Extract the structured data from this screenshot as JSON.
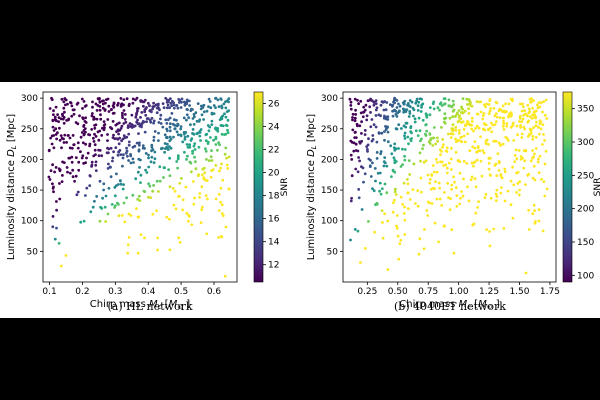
{
  "chart_data": [
    {
      "type": "scatter",
      "xlabel": "Chirp mass",
      "xlabel_symbol": "M",
      "xlabel_subscript": "c",
      "xlabel_unit_open": "[",
      "xlabel_unit_sym": "M",
      "xlabel_unit_sub": "⊙",
      "xlabel_unit_close": "]",
      "ylabel": "Luminosity distance",
      "ylabel_symbol": "D",
      "ylabel_subscript": "L",
      "ylabel_unit": "[Mpc]",
      "colorbar_label": "SNR",
      "caption": "(a) HL network",
      "xlim": [
        0.08,
        0.67
      ],
      "ylim": [
        0,
        310
      ],
      "xticks": [
        0.1,
        0.2,
        0.3,
        0.4,
        0.5,
        0.6
      ],
      "yticks": [
        50,
        100,
        150,
        200,
        250,
        300
      ],
      "clim": [
        10.5,
        27
      ],
      "cticks": [
        12,
        14,
        16,
        18,
        20,
        22,
        24,
        26
      ],
      "colormap": "viridis",
      "grid": false,
      "points_estimated": true,
      "n_points": 800,
      "seed": 11,
      "snr_ref": 300,
      "snr_scale": 0.28,
      "snr_power": 0.8333
    },
    {
      "type": "scatter",
      "xlabel": "Chirp mass",
      "xlabel_symbol": "M",
      "xlabel_subscript": "c",
      "xlabel_unit_open": "[",
      "xlabel_unit_sym": "M",
      "xlabel_unit_sub": "⊙",
      "xlabel_unit_close": "]",
      "ylabel": "Luminosity distance",
      "ylabel_symbol": "D",
      "ylabel_subscript": "L",
      "ylabel_unit": "[Mpc]",
      "colorbar_label": "SNR",
      "caption": "(b) 4040ET network",
      "xlim": [
        0.05,
        1.8
      ],
      "ylim": [
        0,
        310
      ],
      "xticks": [
        0.25,
        0.5,
        0.75,
        1.0,
        1.25,
        1.5,
        1.75
      ],
      "xtick_labels": [
        "0.25",
        "0.50",
        "0.75",
        "1.00",
        "1.25",
        "1.50",
        "1.75"
      ],
      "yticks": [
        50,
        100,
        150,
        200,
        250,
        300
      ],
      "clim": [
        90,
        375
      ],
      "cticks": [
        100,
        150,
        200,
        250,
        300,
        350
      ],
      "colormap": "viridis",
      "grid": false,
      "points_estimated": true,
      "n_points": 800,
      "seed": 29,
      "snr_ref": 300,
      "snr_scale": 1.0,
      "snr_power": 0.8333
    }
  ]
}
